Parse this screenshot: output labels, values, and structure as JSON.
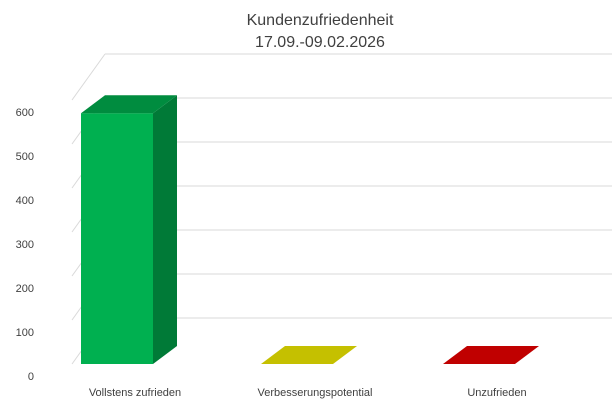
{
  "chart_data": {
    "type": "bar",
    "title": "Kundenzufriedenheit",
    "subtitle": "17.09.-09.02.2026",
    "xlabel": "",
    "ylabel": "",
    "categories": [
      "Vollstens zufrieden",
      "Verbesserungspotential",
      "Unzufrieden"
    ],
    "values": [
      570,
      0,
      0
    ],
    "colors": [
      "#00B050",
      "#C5C000",
      "#C00000"
    ],
    "side_colors": [
      "#007A37",
      "#8F8B00",
      "#8A0000"
    ],
    "top_colors": [
      "#008C3F",
      "#C5C000",
      "#C00000"
    ],
    "ylim": [
      0,
      600
    ],
    "yticks": [
      0,
      100,
      200,
      300,
      400,
      500,
      600
    ],
    "grid": true,
    "legend": "none",
    "style": "3d-column"
  }
}
